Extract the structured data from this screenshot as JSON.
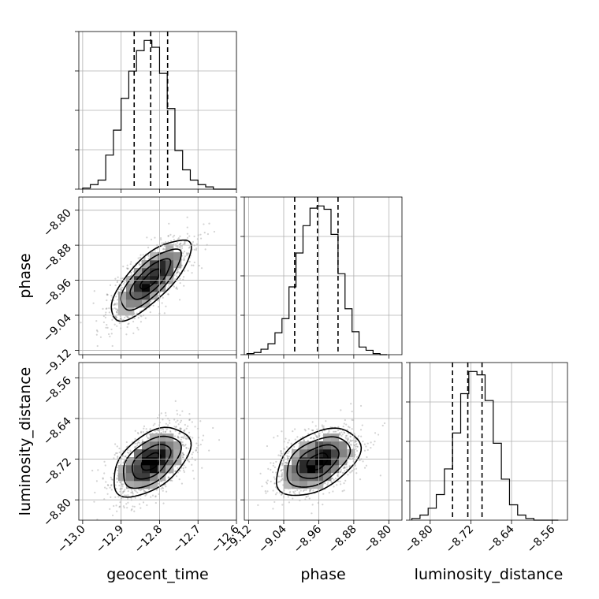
{
  "chart_data": {
    "type": "corner",
    "parameters": [
      "geocent_time",
      "phase",
      "luminosity_distance"
    ],
    "ranges": {
      "geocent_time": [
        -13.01,
        -12.6
      ],
      "phase": [
        -9.13,
        -8.77
      ],
      "luminosity_distance": [
        -8.84,
        -8.53
      ]
    },
    "ticks": {
      "geocent_time": [
        "−13.0",
        "−12.9",
        "−12.8",
        "−12.7",
        "−12.6"
      ],
      "phase": [
        "−9.12",
        "−9.04",
        "−8.96",
        "−8.88",
        "−8.80"
      ],
      "luminosity_distance": [
        "−8.80",
        "−8.72",
        "−8.64",
        "−8.56"
      ]
    },
    "tick_values": {
      "geocent_time": [
        -13.0,
        -12.9,
        -12.8,
        -12.7,
        -12.6
      ],
      "phase": [
        -9.12,
        -9.04,
        -8.96,
        -8.88,
        -8.8
      ],
      "luminosity_distance": [
        -8.8,
        -8.72,
        -8.64,
        -8.56
      ]
    },
    "diag_ticks": 4,
    "grid": true,
    "histograms": [
      {
        "parameter": "geocent_time",
        "edges": [
          -13.0,
          -12.98,
          -12.96,
          -12.94,
          -12.92,
          -12.9,
          -12.88,
          -12.86,
          -12.84,
          -12.82,
          -12.8,
          -12.78,
          -12.76,
          -12.74,
          -12.72,
          -12.7,
          -12.68,
          -12.66,
          -12.64,
          -12.62,
          -12.6
        ],
        "counts": [
          1,
          4,
          8,
          30,
          52,
          80,
          104,
          122,
          131,
          125,
          102,
          71,
          34,
          17,
          8,
          4,
          2,
          0,
          0,
          0
        ],
        "quantiles": [
          -12.866,
          -12.823,
          -12.779
        ]
      },
      {
        "parameter": "phase",
        "edges": [
          -9.124,
          -9.108,
          -9.092,
          -9.076,
          -9.06,
          -9.044,
          -9.028,
          -9.012,
          -8.996,
          -8.98,
          -8.964,
          -8.948,
          -8.932,
          -8.916,
          -8.9,
          -8.884,
          -8.868,
          -8.852,
          -8.836,
          -8.82,
          -8.804
        ],
        "counts": [
          1,
          2,
          5,
          10,
          20,
          33,
          62,
          93,
          118,
          134,
          136,
          133,
          110,
          74,
          42,
          21,
          7,
          4,
          1,
          0
        ],
        "quantiles": [
          -9.015,
          -8.963,
          -8.916
        ]
      },
      {
        "parameter": "luminosity_distance",
        "edges": [
          -8.836,
          -8.82,
          -8.804,
          -8.788,
          -8.772,
          -8.756,
          -8.74,
          -8.724,
          -8.708,
          -8.692,
          -8.676,
          -8.66,
          -8.644,
          -8.628,
          -8.612,
          -8.596,
          -8.58,
          -8.564,
          -8.548
        ],
        "counts": [
          1,
          3,
          7,
          15,
          30,
          51,
          74,
          87,
          85,
          70,
          45,
          24,
          9,
          3,
          1,
          0,
          0,
          0
        ],
        "quantiles": [
          -8.756,
          -8.726,
          -8.698
        ]
      }
    ],
    "pairs": [
      {
        "x": "geocent_time",
        "y": "phase",
        "mean": [
          -12.824,
          -8.958
        ],
        "sd": [
          0.052,
          0.046
        ],
        "rho": 0.75,
        "sigma_levels": [
          0.5,
          1.0,
          1.5,
          2.0
        ]
      },
      {
        "x": "geocent_time",
        "y": "luminosity_distance",
        "mean": [
          -12.822,
          -8.725
        ],
        "sd": [
          0.05,
          0.034
        ],
        "rho": 0.5,
        "sigma_levels": [
          0.5,
          1.0,
          1.5,
          2.0
        ]
      },
      {
        "x": "phase",
        "y": "luminosity_distance",
        "mean": [
          -8.963,
          -8.725
        ],
        "sd": [
          0.048,
          0.033
        ],
        "rho": 0.45,
        "sigma_levels": [
          0.5,
          1.0,
          1.5,
          2.0
        ]
      }
    ]
  },
  "colors": {
    "line": "#000000",
    "grid": "#b0b0b0",
    "scatter": "#808080",
    "density_max": "#000000"
  }
}
